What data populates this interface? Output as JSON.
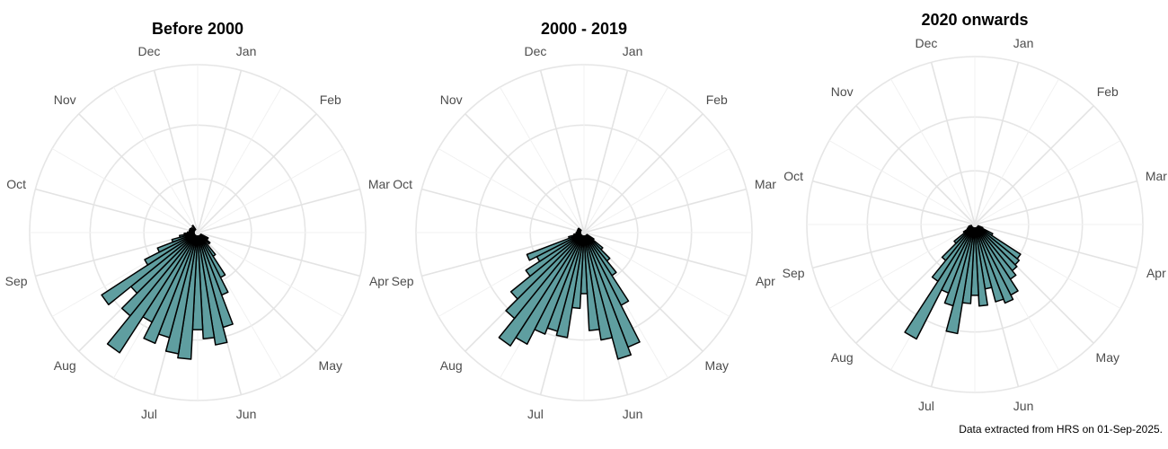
{
  "footnote": "Data extracted from HRS on 01-Sep-2025.",
  "colors": {
    "bar_fill": "#5f9ea0",
    "bar_stroke": "#000000",
    "grid": "#e6e6e6",
    "label": "#4d4d4d"
  },
  "chart_data": [
    {
      "type": "bar",
      "coord": "polar",
      "title": "Before 2000",
      "month_labels": [
        "Jan",
        "Feb",
        "Mar",
        "Apr",
        "May",
        "Jun",
        "Jul",
        "Aug",
        "Sep",
        "Oct",
        "Nov",
        "Dec"
      ],
      "axis_ticks_shown": false,
      "grid": true,
      "bars": [
        {
          "angle_deg": 144,
          "value": 30
        },
        {
          "angle_deg": 150,
          "value": 57
        },
        {
          "angle_deg": 156,
          "value": 77
        },
        {
          "angle_deg": 162,
          "value": 115
        },
        {
          "angle_deg": 168,
          "value": 134
        },
        {
          "angle_deg": 174,
          "value": 125
        },
        {
          "angle_deg": 180,
          "value": 114
        },
        {
          "angle_deg": 186,
          "value": 150
        },
        {
          "angle_deg": 192,
          "value": 145
        },
        {
          "angle_deg": 198,
          "value": 128
        },
        {
          "angle_deg": 204,
          "value": 140
        },
        {
          "angle_deg": 210,
          "value": 118
        },
        {
          "angle_deg": 216,
          "value": 170
        },
        {
          "angle_deg": 222,
          "value": 126
        },
        {
          "angle_deg": 228,
          "value": 100
        },
        {
          "angle_deg": 234,
          "value": 135
        },
        {
          "angle_deg": 240,
          "value": 68
        },
        {
          "angle_deg": 246,
          "value": 48
        },
        {
          "angle_deg": 252,
          "value": 28
        },
        {
          "angle_deg": 258,
          "value": 18
        },
        {
          "angle_deg": 264,
          "value": 12
        },
        {
          "angle_deg": 270,
          "value": 8
        },
        {
          "angle_deg": 282,
          "value": 6
        },
        {
          "angle_deg": 294,
          "value": 6
        },
        {
          "angle_deg": 306,
          "value": 5
        },
        {
          "angle_deg": 324,
          "value": 6
        },
        {
          "angle_deg": 120,
          "value": 10
        },
        {
          "angle_deg": 132,
          "value": 15
        }
      ]
    },
    {
      "type": "bar",
      "coord": "polar",
      "title": "2000 - 2019",
      "month_labels": [
        "Jan",
        "Feb",
        "Mar",
        "Apr",
        "May",
        "Jun",
        "Jul",
        "Aug",
        "Sep",
        "Oct",
        "Nov",
        "Dec"
      ],
      "axis_ticks_shown": false,
      "grid": true,
      "bars": [
        {
          "angle_deg": 126,
          "value": 10
        },
        {
          "angle_deg": 132,
          "value": 25
        },
        {
          "angle_deg": 138,
          "value": 40
        },
        {
          "angle_deg": 144,
          "value": 58
        },
        {
          "angle_deg": 150,
          "value": 95
        },
        {
          "angle_deg": 156,
          "value": 145
        },
        {
          "angle_deg": 162,
          "value": 155
        },
        {
          "angle_deg": 168,
          "value": 128
        },
        {
          "angle_deg": 174,
          "value": 115
        },
        {
          "angle_deg": 180,
          "value": 70
        },
        {
          "angle_deg": 186,
          "value": 88
        },
        {
          "angle_deg": 192,
          "value": 125
        },
        {
          "angle_deg": 198,
          "value": 120
        },
        {
          "angle_deg": 204,
          "value": 128
        },
        {
          "angle_deg": 210,
          "value": 148
        },
        {
          "angle_deg": 216,
          "value": 160
        },
        {
          "angle_deg": 222,
          "value": 130
        },
        {
          "angle_deg": 228,
          "value": 110
        },
        {
          "angle_deg": 234,
          "value": 80
        },
        {
          "angle_deg": 240,
          "value": 60
        },
        {
          "angle_deg": 246,
          "value": 70
        },
        {
          "angle_deg": 252,
          "value": 15
        },
        {
          "angle_deg": 258,
          "value": 8
        },
        {
          "angle_deg": 264,
          "value": 5
        },
        {
          "angle_deg": 270,
          "value": 5
        },
        {
          "angle_deg": 282,
          "value": 4
        },
        {
          "angle_deg": 294,
          "value": 4
        },
        {
          "angle_deg": 306,
          "value": 4
        }
      ]
    },
    {
      "type": "bar",
      "coord": "polar",
      "title": "2020 onwards",
      "month_labels": [
        "Jan",
        "Feb",
        "Mar",
        "Apr",
        "May",
        "Jun",
        "Jul",
        "Aug",
        "Sep",
        "Oct",
        "Nov",
        "Dec"
      ],
      "axis_ticks_shown": false,
      "grid": true,
      "bars": [
        {
          "angle_deg": 114,
          "value": 6
        },
        {
          "angle_deg": 120,
          "value": 20
        },
        {
          "angle_deg": 126,
          "value": 62
        },
        {
          "angle_deg": 132,
          "value": 65
        },
        {
          "angle_deg": 138,
          "value": 68
        },
        {
          "angle_deg": 144,
          "value": 75
        },
        {
          "angle_deg": 150,
          "value": 92
        },
        {
          "angle_deg": 156,
          "value": 98
        },
        {
          "angle_deg": 162,
          "value": 93
        },
        {
          "angle_deg": 168,
          "value": 75
        },
        {
          "angle_deg": 174,
          "value": 95
        },
        {
          "angle_deg": 180,
          "value": 82
        },
        {
          "angle_deg": 186,
          "value": 92
        },
        {
          "angle_deg": 192,
          "value": 130
        },
        {
          "angle_deg": 198,
          "value": 98
        },
        {
          "angle_deg": 204,
          "value": 85
        },
        {
          "angle_deg": 210,
          "value": 152
        },
        {
          "angle_deg": 216,
          "value": 78
        },
        {
          "angle_deg": 222,
          "value": 52
        },
        {
          "angle_deg": 228,
          "value": 28
        },
        {
          "angle_deg": 234,
          "value": 12
        },
        {
          "angle_deg": 240,
          "value": 6
        },
        {
          "angle_deg": 246,
          "value": 4
        },
        {
          "angle_deg": 252,
          "value": 3
        }
      ]
    }
  ]
}
